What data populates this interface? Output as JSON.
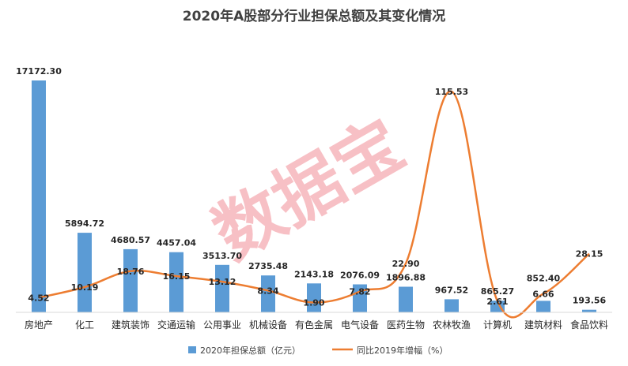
{
  "chart_data": {
    "type": "bar",
    "title": "2020年A股部分行业担保总额及其变化情况",
    "categories": [
      "房地产",
      "化工",
      "建筑装饰",
      "交通运输",
      "公用事业",
      "机械设备",
      "有色金属",
      "电气设备",
      "医药生物",
      "农林牧渔",
      "计算机",
      "建筑材料",
      "食品饮料"
    ],
    "series": [
      {
        "name": "2020年担保总额（亿元）",
        "type": "bar",
        "color": "#5b9bd5",
        "axis": "left",
        "values": [
          17172.3,
          5894.72,
          4680.57,
          4457.04,
          3513.7,
          2735.48,
          2143.18,
          2076.09,
          1896.88,
          967.52,
          865.27,
          852.4,
          193.56
        ],
        "labels": [
          "17172.30",
          "5894.72",
          "4680.57",
          "4457.04",
          "3513.70",
          "2735.48",
          "2143.18",
          "2076.09",
          "1896.88",
          "967.52",
          "865.27",
          "852.40",
          "193.56"
        ]
      },
      {
        "name": "同比2019年增幅（%）",
        "type": "line",
        "color": "#ed7d31",
        "axis": "right",
        "values": [
          4.52,
          10.19,
          18.76,
          16.15,
          13.12,
          8.34,
          1.9,
          7.82,
          22.9,
          115.53,
          2.61,
          6.66,
          28.15
        ],
        "labels": [
          "4.52",
          "10.19",
          "18.76",
          "16.15",
          "13.12",
          "8.34",
          "1.90",
          "7.82",
          "22.90",
          "115.53",
          "2.61",
          "6.66",
          "28.15"
        ]
      }
    ],
    "grid": false,
    "legend": "bottom",
    "watermark": "数据宝"
  }
}
